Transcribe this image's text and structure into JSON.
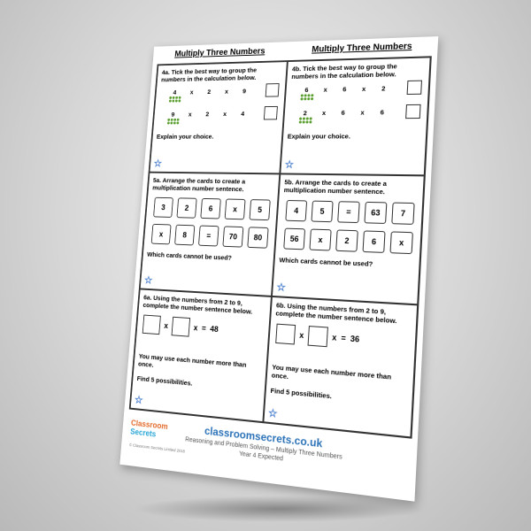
{
  "titles": [
    "Multiply Three Numbers",
    "Multiply Three Numbers"
  ],
  "panels": [
    {
      "prompt": "4a. Tick the best way to group the numbers in the calculation below.",
      "rows": [
        [
          "4",
          "x",
          "2",
          "x",
          "9"
        ],
        [
          "9",
          "x",
          "2",
          "x",
          "4"
        ]
      ],
      "notes": [
        "Explain your choice."
      ]
    },
    {
      "prompt": "4b. Tick the best way to group the numbers in the calculation below.",
      "rows": [
        [
          "6",
          "x",
          "6",
          "x",
          "2"
        ],
        [
          "2",
          "x",
          "6",
          "x",
          "6"
        ]
      ],
      "notes": [
        "Explain your choice."
      ]
    },
    {
      "prompt": "5a. Arrange the cards to create a multiplication number sentence.",
      "cards": [
        [
          "3",
          "2",
          "6",
          "x",
          "5"
        ],
        [
          "x",
          "8",
          "=",
          "70",
          "80"
        ]
      ],
      "notes": [
        "Which cards cannot be used?"
      ]
    },
    {
      "prompt": "5b. Arrange the cards to create a multiplication number sentence.",
      "cards": [
        [
          "4",
          "5",
          "=",
          "63",
          "7"
        ],
        [
          "56",
          "x",
          "2",
          "6",
          "x"
        ]
      ],
      "notes": [
        "Which cards cannot be used?"
      ]
    },
    {
      "prompt": "6a. Using the numbers from 2 to 9, complete the number sentence below.",
      "sentence": {
        "ops": [
          "x",
          "x",
          "="
        ],
        "result": "48"
      },
      "notes": [
        "You may use each number more than once.",
        "Find 5 possibilities."
      ]
    },
    {
      "prompt": "6b. Using the numbers from 2 to 9, complete the number sentence below.",
      "sentence": {
        "ops": [
          "x",
          "x",
          "="
        ],
        "result": "36"
      },
      "notes": [
        "You may use each number more than once.",
        "Find 5 possibilities."
      ]
    }
  ],
  "footer": {
    "logo": [
      "Classroom",
      "Secrets"
    ],
    "site": "classroomsecrets.co.uk",
    "subtitle": "Reasoning and Problem Solving – Multiply Three Numbers",
    "level": "Year 4 Expected",
    "copyright": "© Classroom Secrets Limited 2018"
  }
}
